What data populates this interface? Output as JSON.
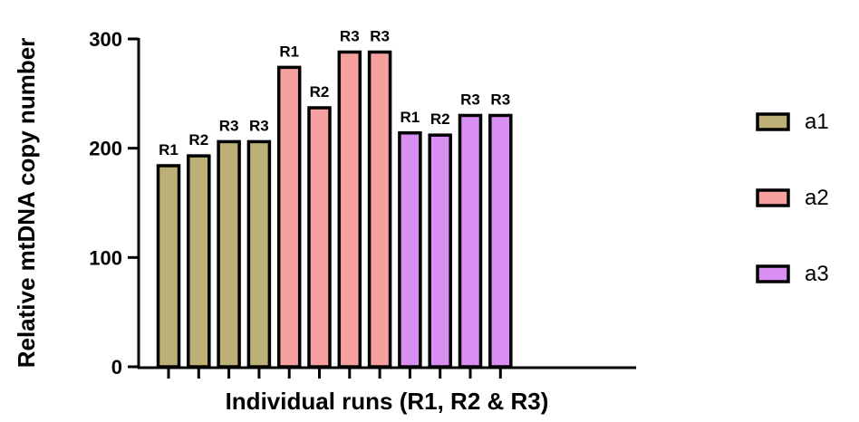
{
  "chart_data": {
    "type": "bar",
    "xlabel": "Individual runs (R1, R2 &  R3)",
    "ylabel": "Relative mtDNA copy number",
    "ylim": [
      0,
      300
    ],
    "yticks": [
      "0",
      "100",
      "200",
      "300"
    ],
    "grid": false,
    "legend_position": "right",
    "series": [
      {
        "name": "a1",
        "color": "#bdb076",
        "labels": [
          "R1",
          "R2",
          "R3",
          "R3"
        ],
        "values": [
          184,
          193,
          206,
          206
        ]
      },
      {
        "name": "a2",
        "color": "#f6a0a0",
        "labels": [
          "R1",
          "R2",
          "R3",
          "R3"
        ],
        "values": [
          274,
          237,
          288,
          288
        ]
      },
      {
        "name": "a3",
        "color": "#d98ef2",
        "labels": [
          "R1",
          "R2",
          "R3",
          "R3"
        ],
        "values": [
          214,
          212,
          230,
          230
        ]
      }
    ]
  }
}
